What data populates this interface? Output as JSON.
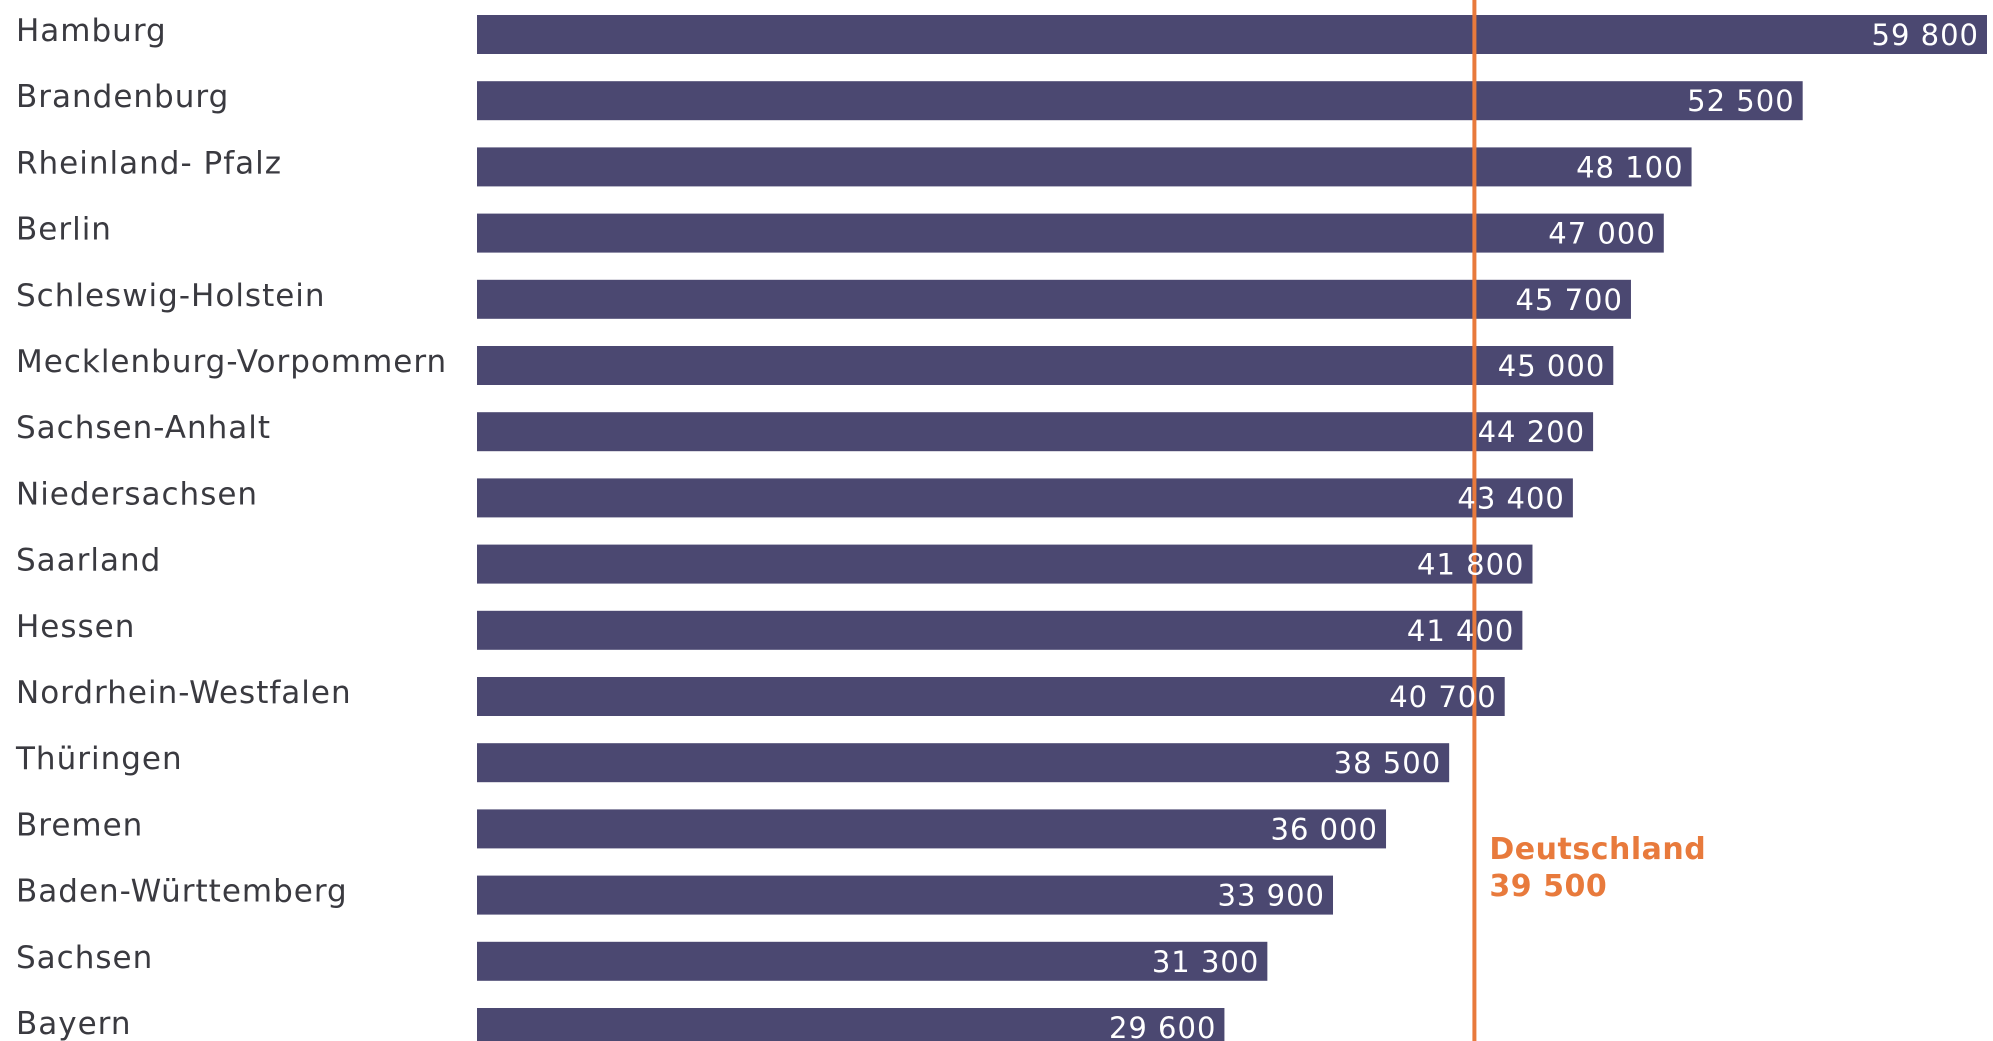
{
  "chart_data": {
    "type": "bar",
    "orientation": "horizontal",
    "categories": [
      "Hamburg",
      "Brandenburg",
      "Rheinland- Pfalz",
      "Berlin",
      "Schleswig-Holstein",
      "Mecklenburg-Vorpommern",
      "Sachsen-Anhalt",
      "Niedersachsen",
      "Saarland",
      "Hessen",
      "Nordrhein-Westfalen",
      "Thüringen",
      "Bremen",
      "Baden-Württemberg",
      "Sachsen",
      "Bayern"
    ],
    "values": [
      59800,
      52500,
      48100,
      47000,
      45700,
      45000,
      44200,
      43400,
      41800,
      41400,
      40700,
      38500,
      36000,
      33900,
      31300,
      29600
    ],
    "value_labels": [
      "59 800",
      "52 500",
      "48 100",
      "47 000",
      "45 700",
      "45 000",
      "44 200",
      "43 400",
      "41 800",
      "41 400",
      "40 700",
      "38 500",
      "36 000",
      "33 900",
      "31 300",
      "29 600"
    ],
    "reference_line": {
      "label": "Deutschland",
      "value": 39500,
      "value_label": "39 500"
    },
    "title": "",
    "xlabel": "",
    "ylabel": "",
    "grid": false,
    "colors": {
      "bar": "#4b4871",
      "reference": "#e87a3c",
      "label_text": "#3a3a40",
      "value_text": "#ffffff"
    }
  }
}
